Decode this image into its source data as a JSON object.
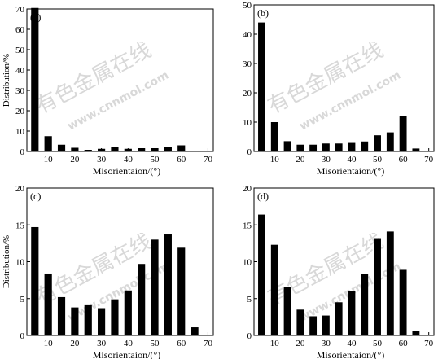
{
  "watermark": {
    "line1": "有色金属在线",
    "line2": "www.cnnmol.com"
  },
  "chart_data": [
    {
      "type": "bar",
      "panel_label": "(a)",
      "xlabel": "Misorientaion/(°)",
      "ylabel": "Distribution/%",
      "xlim": [
        2,
        72
      ],
      "ylim": [
        0,
        70
      ],
      "xticks": [
        10,
        20,
        30,
        40,
        50,
        60,
        70
      ],
      "yticks": [
        0,
        10,
        20,
        30,
        40,
        50,
        60,
        70
      ],
      "x": [
        5,
        10,
        15,
        20,
        25,
        30,
        35,
        40,
        45,
        50,
        55,
        60,
        65
      ],
      "values": [
        70.5,
        7.5,
        3.3,
        1.8,
        0.8,
        1.3,
        2.1,
        1.3,
        1.6,
        1.6,
        2.2,
        3.0,
        0.3
      ]
    },
    {
      "type": "bar",
      "panel_label": "(b)",
      "xlabel": "Misorientaion/(°)",
      "ylabel": "",
      "xlim": [
        2,
        72
      ],
      "ylim": [
        0,
        50
      ],
      "xticks": [
        10,
        20,
        30,
        40,
        50,
        60,
        70
      ],
      "yticks": [
        0,
        10,
        20,
        30,
        40,
        50
      ],
      "x": [
        5,
        10,
        15,
        20,
        25,
        30,
        35,
        40,
        45,
        50,
        55,
        60,
        65
      ],
      "values": [
        44.0,
        10.0,
        3.5,
        2.3,
        2.3,
        2.7,
        2.7,
        2.9,
        3.4,
        5.5,
        6.5,
        12.0,
        1.0
      ]
    },
    {
      "type": "bar",
      "panel_label": "(c)",
      "xlabel": "Misorientaion/(°)",
      "ylabel": "Distribution/%",
      "xlim": [
        2,
        72
      ],
      "ylim": [
        0,
        20
      ],
      "xticks": [
        10,
        20,
        30,
        40,
        50,
        60,
        70
      ],
      "yticks": [
        0,
        5,
        10,
        15,
        20
      ],
      "x": [
        5,
        10,
        15,
        20,
        25,
        30,
        35,
        40,
        45,
        50,
        55,
        60,
        65
      ],
      "values": [
        14.7,
        8.4,
        5.2,
        3.8,
        4.1,
        3.7,
        4.9,
        6.1,
        9.7,
        13.0,
        13.7,
        11.9,
        1.1
      ]
    },
    {
      "type": "bar",
      "panel_label": "(d)",
      "xlabel": "Misorientaion/(°)",
      "ylabel": "",
      "xlim": [
        2,
        72
      ],
      "ylim": [
        0,
        20
      ],
      "xticks": [
        10,
        20,
        30,
        40,
        50,
        60,
        70
      ],
      "yticks": [
        0,
        5,
        10,
        15,
        20
      ],
      "x": [
        5,
        10,
        15,
        20,
        25,
        30,
        35,
        40,
        45,
        50,
        55,
        60,
        65
      ],
      "values": [
        16.4,
        12.3,
        6.6,
        3.5,
        2.6,
        2.7,
        4.5,
        6.0,
        8.3,
        13.2,
        14.1,
        8.9,
        0.6
      ]
    }
  ]
}
